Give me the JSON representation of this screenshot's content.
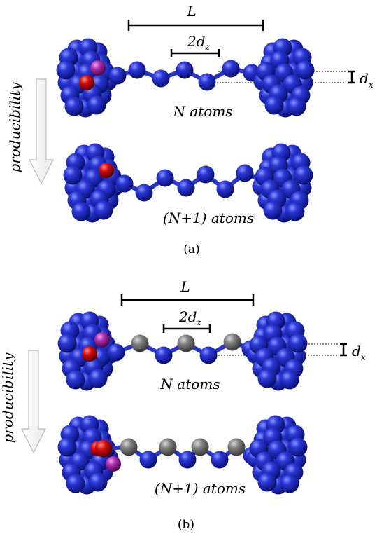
{
  "panel_a": {
    "length_label": "L",
    "spacing_label": "2d",
    "spacing_subscript": "z",
    "offset_label": "d",
    "offset_subscript": "x",
    "arrow_label": "producibility",
    "top_chain_label": "N atoms",
    "bottom_chain_label": "(N+1) atoms",
    "caption": "(a)"
  },
  "panel_b": {
    "length_label": "L",
    "spacing_label": "2d",
    "spacing_subscript": "z",
    "offset_label": "d",
    "offset_subscript": "x",
    "arrow_label": "producibility",
    "top_chain_label": "N atoms",
    "bottom_chain_label": "(N+1) atoms",
    "caption": "(b)"
  },
  "colors": {
    "electrode_atom": "#1f2bb8",
    "chain_atom": "#1f2bb8",
    "substituted_atom": "#7a7a7a",
    "oxygen_atom": "#d40c0c",
    "dopant_atom": "#b02eb0",
    "measure_line": "#000000"
  }
}
